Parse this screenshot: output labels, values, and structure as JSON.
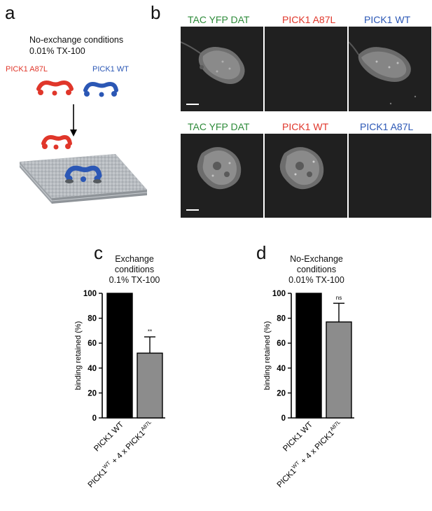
{
  "panels": {
    "a": {
      "letter": "a",
      "condition": "No-exchange conditions",
      "detergent": "0.01% TX-100",
      "label_left": "PICK1 A87L",
      "label_right": "PICK1 WT",
      "colors": {
        "red": "#e0362a",
        "blue": "#2b57b5",
        "membrane": "#b9bec3"
      }
    },
    "b": {
      "letter": "b",
      "row1": [
        "TAC YFP DAT",
        "PICK1 A87L",
        "PICK1 WT"
      ],
      "row2": [
        "TAC YFP DAT",
        "PICK1 WT",
        "PICK1 A87L"
      ],
      "colors": {
        "green": "#2e8b3a",
        "red": "#e0362a",
        "blue": "#2b57b5"
      }
    },
    "c": {
      "letter": "c",
      "title_lines": [
        "Exchange",
        "conditions",
        "0.1% TX-100"
      ]
    },
    "d": {
      "letter": "d",
      "title_lines": [
        "No-Exchange",
        "conditions",
        "0.01% TX-100"
      ]
    }
  },
  "chart_data": [
    {
      "type": "bar",
      "panel": "c",
      "title": "Exchange conditions 0.1% TX-100",
      "categories": [
        "PICK1 WT",
        "PICK1WT + 4 x PICK1A87L"
      ],
      "values": [
        100,
        52
      ],
      "errors": [
        0,
        13
      ],
      "significance": [
        "",
        "**"
      ],
      "bar_colors": [
        "#000000",
        "#8c8c8c"
      ],
      "ylabel": "binding retained (%)",
      "ylim": [
        0,
        100
      ],
      "yticks": [
        0,
        20,
        40,
        60,
        80,
        100
      ]
    },
    {
      "type": "bar",
      "panel": "d",
      "title": "No-Exchange conditions 0.01% TX-100",
      "categories": [
        "PICK1 WT",
        "PICK1WT + 4 x PICK1A87L"
      ],
      "values": [
        100,
        77
      ],
      "errors": [
        0,
        15
      ],
      "significance": [
        "",
        "ns"
      ],
      "bar_colors": [
        "#000000",
        "#8c8c8c"
      ],
      "ylabel": "binding retained (%)",
      "ylim": [
        0,
        100
      ],
      "yticks": [
        0,
        20,
        40,
        60,
        80,
        100
      ]
    }
  ]
}
